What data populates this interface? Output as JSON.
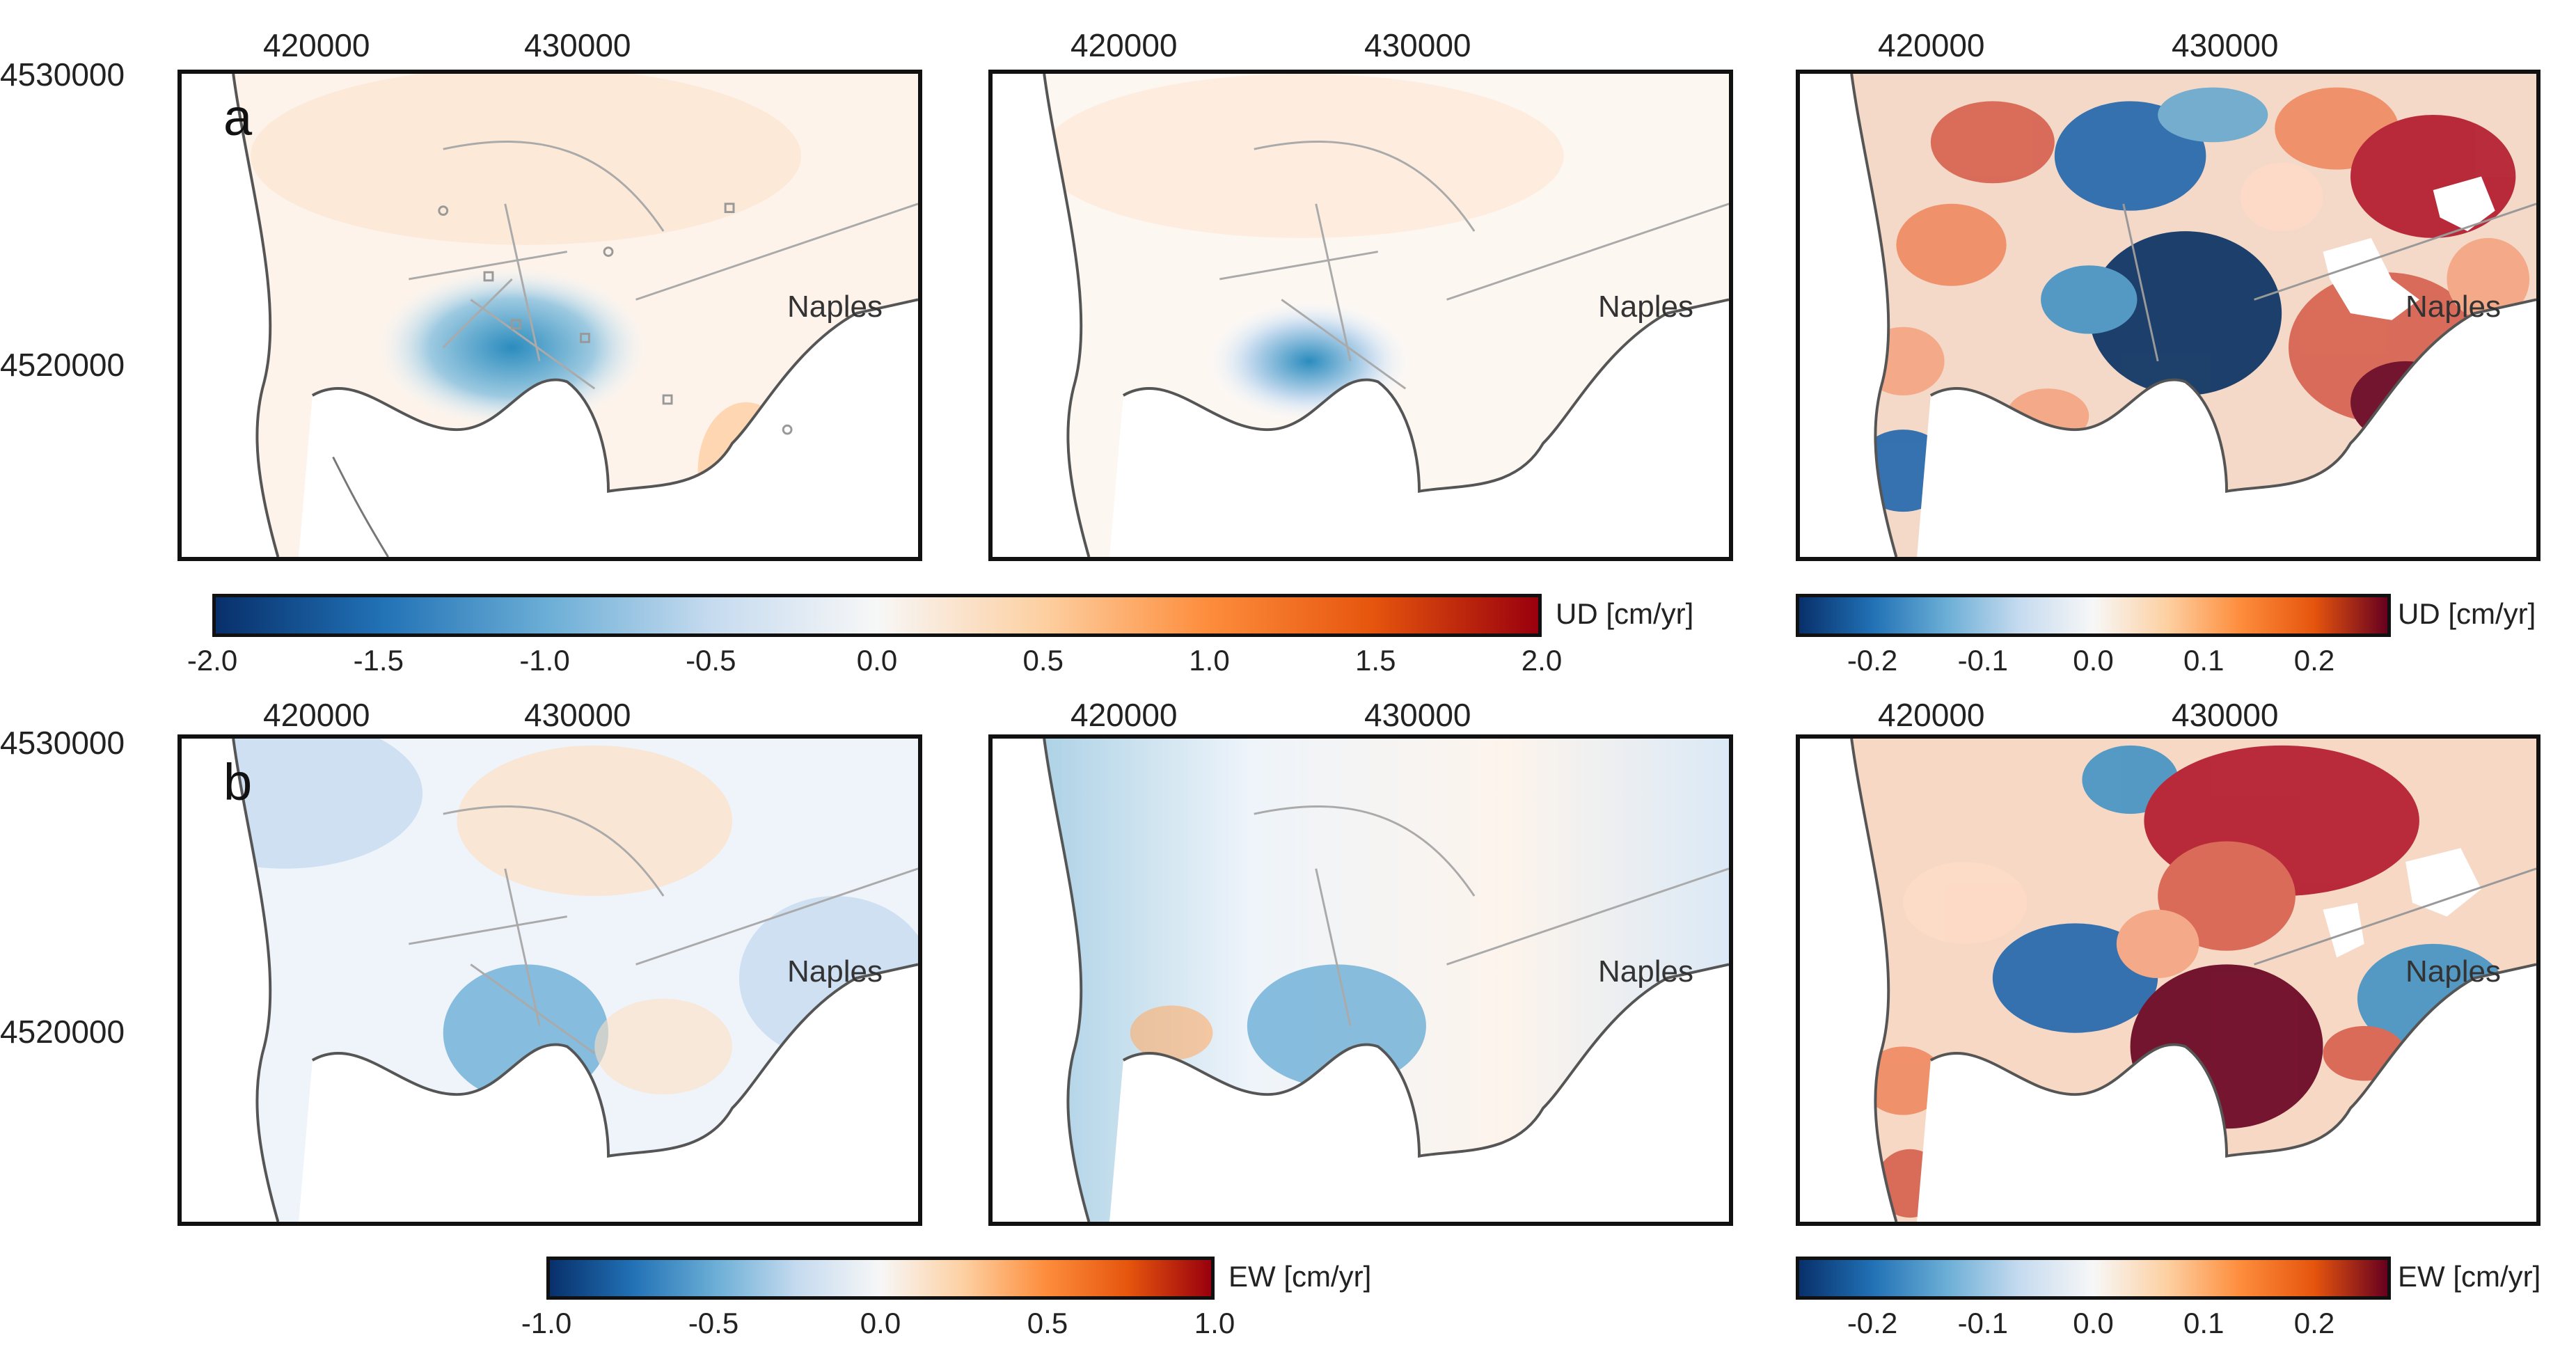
{
  "axes": {
    "x_ticks": [
      "420000",
      "430000"
    ],
    "y_ticks": [
      "4530000",
      "4520000"
    ]
  },
  "rows": [
    {
      "letter": "a",
      "panels": [
        {
          "id": "a1",
          "city": "Naples",
          "scheme": "ud-model"
        },
        {
          "id": "a2",
          "city": "Naples",
          "scheme": "ud-smooth"
        },
        {
          "id": "a3",
          "city": "Naples",
          "scheme": "ud-residual"
        }
      ],
      "colorbar_main": {
        "label": "UD [cm/yr]",
        "ticks": [
          "-2.0",
          "-1.5",
          "-1.0",
          "-0.5",
          "0.0",
          "0.5",
          "1.0",
          "1.5",
          "2.0"
        ]
      },
      "colorbar_resid": {
        "label": "UD [cm/yr]",
        "ticks": [
          "-0.2",
          "-0.1",
          "0.0",
          "0.1",
          "0.2"
        ]
      }
    },
    {
      "letter": "b",
      "panels": [
        {
          "id": "b1",
          "city": "Naples",
          "scheme": "ew-model"
        },
        {
          "id": "b2",
          "city": "Naples",
          "scheme": "ew-smooth"
        },
        {
          "id": "b3",
          "city": "Naples",
          "scheme": "ew-residual"
        }
      ],
      "colorbar_main": {
        "label": "EW [cm/yr]",
        "ticks": [
          "-1.0",
          "-0.5",
          "0.0",
          "0.5",
          "1.0"
        ]
      },
      "colorbar_resid": {
        "label": "EW [cm/yr]",
        "ticks": [
          "-0.2",
          "-0.1",
          "0.0",
          "0.1",
          "0.2"
        ]
      }
    }
  ],
  "colors": {
    "blue_dark": "#08306b",
    "blue": "#2b8cbe",
    "white": "#f7f7f7",
    "orange": "#fdae6b",
    "red_dark": "#99000d"
  }
}
